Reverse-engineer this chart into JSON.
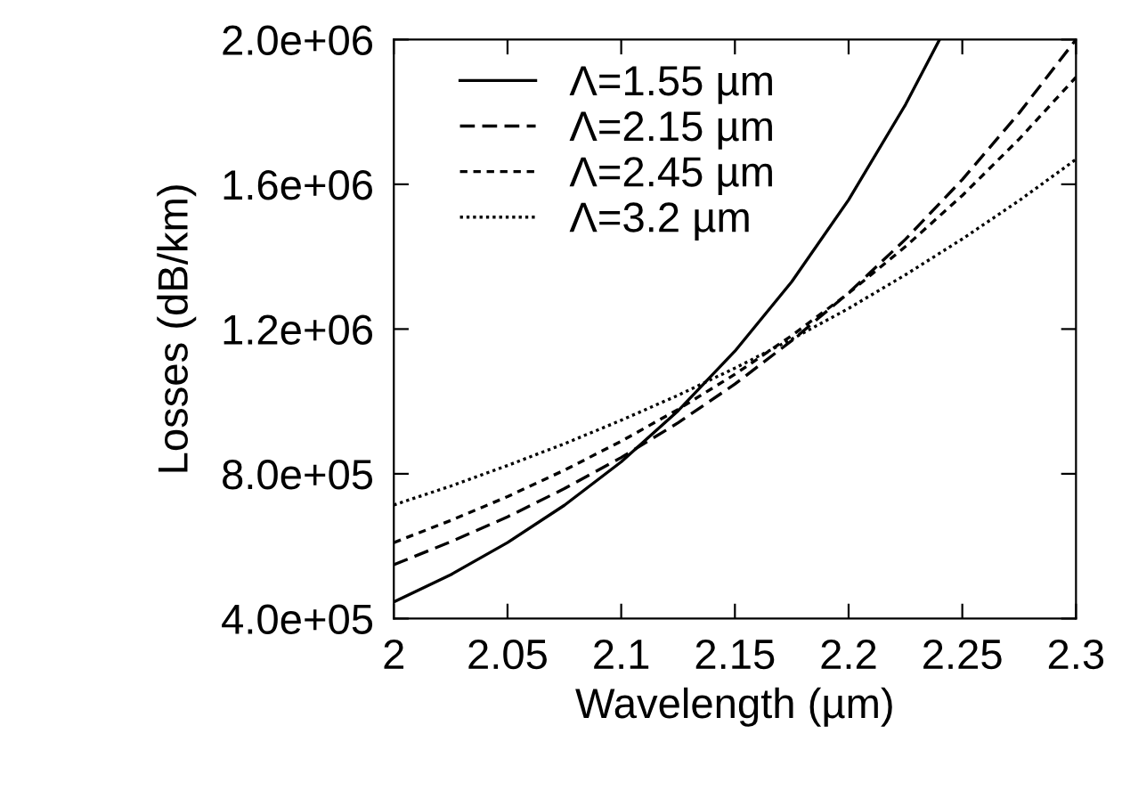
{
  "chart_data": {
    "type": "line",
    "xlabel": "Wavelength (µm)",
    "ylabel": "Losses (dB/km)",
    "xlim": [
      2,
      2.3
    ],
    "xticks": [
      2,
      2.05,
      2.1,
      2.15,
      2.2,
      2.25,
      2.3
    ],
    "ylim": [
      400000,
      2000000
    ],
    "yticks": [
      {
        "value": 400000,
        "label": "4.0e+05"
      },
      {
        "value": 800000,
        "label": "8.0e+05"
      },
      {
        "value": 1200000,
        "label": "1.2e+06"
      },
      {
        "value": 1600000,
        "label": "1.6e+06"
      },
      {
        "value": 2000000,
        "label": "2.0e+06"
      }
    ],
    "grid": false,
    "legend": "top left",
    "marker": "none",
    "series": [
      {
        "name": "Λ=1.55 µm",
        "color": "#000000",
        "line_style": "solid",
        "x": [
          2,
          2.025,
          2.05,
          2.075,
          2.1,
          2.125,
          2.15,
          2.175,
          2.2,
          2.225,
          2.24
        ],
        "values": [
          446000,
          521000,
          610000,
          713000,
          833000,
          974000,
          1139000,
          1331000,
          1557000,
          1820000,
          2000000
        ]
      },
      {
        "name": "Λ=2.15 µm",
        "color": "#000000",
        "line_style": "dashed",
        "x": [
          2,
          2.025,
          2.05,
          2.075,
          2.1,
          2.125,
          2.15,
          2.175,
          2.2,
          2.225,
          2.25,
          2.275,
          2.3
        ],
        "values": [
          549000,
          612000,
          681000,
          759000,
          845000,
          941000,
          1048000,
          1168000,
          1300000,
          1448000,
          1613000,
          1797000,
          2000000
        ]
      },
      {
        "name": "Λ=2.45 µm",
        "color": "#000000",
        "line_style": "dotted",
        "x": [
          2,
          2.025,
          2.05,
          2.075,
          2.1,
          2.125,
          2.15,
          2.175,
          2.2,
          2.225,
          2.25,
          2.275,
          2.3
        ],
        "values": [
          610000,
          671000,
          737000,
          810000,
          890000,
          978000,
          1075000,
          1182000,
          1299000,
          1428000,
          1569000,
          1725000,
          1896000
        ]
      },
      {
        "name": "Λ=3.2 µm",
        "color": "#000000",
        "line_style": "dotted",
        "x": [
          2,
          2.025,
          2.05,
          2.075,
          2.1,
          2.125,
          2.15,
          2.175,
          2.2,
          2.225,
          2.25,
          2.275,
          2.3
        ],
        "values": [
          714000,
          766000,
          823000,
          883000,
          948000,
          1017000,
          1092000,
          1172000,
          1257000,
          1350000,
          1449000,
          1555000,
          1669000
        ]
      }
    ]
  }
}
